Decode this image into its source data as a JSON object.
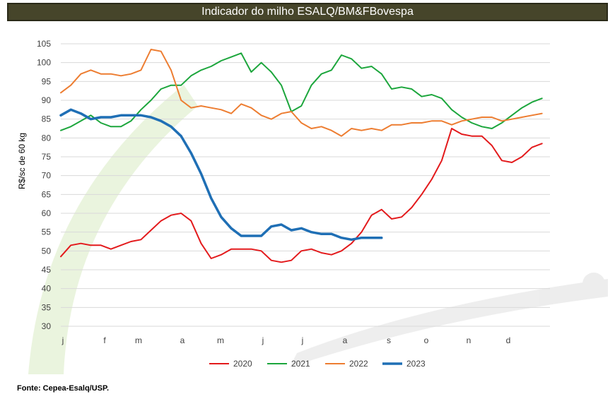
{
  "title": "Indicador do milho ESALQ/BM&FBovespa",
  "source": "Fonte: Cepea-Esalq/USP.",
  "chart_data": {
    "type": "line",
    "title": "Indicador do milho ESALQ/BM&FBovespa",
    "ylabel": "R$/sc de 60 kg",
    "xlabel": "",
    "ylim": [
      30,
      105
    ],
    "yticks": [
      30,
      35,
      40,
      45,
      50,
      55,
      60,
      65,
      70,
      75,
      80,
      85,
      90,
      95,
      100,
      105
    ],
    "xlim": [
      0,
      12.2
    ],
    "month_ticks": [
      "j",
      "f",
      "m",
      "a",
      "m",
      "j",
      "j",
      "a",
      "s",
      "o",
      "n",
      "d"
    ],
    "grid": true,
    "legend": "bottom",
    "series": [
      {
        "name": "2020",
        "color": "#e31a1c",
        "x": [
          0.0,
          0.25,
          0.5,
          0.75,
          1.0,
          1.25,
          1.5,
          1.75,
          2.0,
          2.25,
          2.5,
          2.75,
          3.0,
          3.25,
          3.5,
          3.75,
          4.0,
          4.25,
          4.5,
          4.75,
          5.0,
          5.25,
          5.5,
          5.75,
          6.0,
          6.25,
          6.5,
          6.75,
          7.0,
          7.25,
          7.5,
          7.75,
          8.0,
          8.25,
          8.5,
          8.75,
          9.0,
          9.25,
          9.5,
          9.75,
          10.0,
          10.25,
          10.5,
          10.75,
          11.0,
          11.25,
          11.5,
          11.75,
          12.0
        ],
        "y": [
          48.5,
          51.5,
          52.0,
          51.5,
          51.5,
          50.5,
          51.5,
          52.5,
          53.0,
          55.5,
          58.0,
          59.5,
          60.0,
          58.0,
          52.0,
          48.0,
          49.0,
          50.5,
          50.5,
          50.5,
          50.0,
          47.5,
          47.0,
          47.5,
          50.0,
          50.5,
          49.5,
          49.0,
          50.0,
          52.0,
          55.0,
          59.5,
          61.0,
          58.5,
          59.0,
          61.5,
          65.0,
          69.0,
          74.0,
          82.5,
          81.0,
          80.5,
          80.5,
          78.0,
          74.0,
          73.5,
          75.0,
          77.5,
          78.5
        ]
      },
      {
        "name": "2021",
        "color": "#1ca63c",
        "x": [
          0.0,
          0.25,
          0.5,
          0.75,
          1.0,
          1.25,
          1.5,
          1.75,
          2.0,
          2.25,
          2.5,
          2.75,
          3.0,
          3.25,
          3.5,
          3.75,
          4.0,
          4.25,
          4.5,
          4.75,
          5.0,
          5.25,
          5.5,
          5.75,
          6.0,
          6.25,
          6.5,
          6.75,
          7.0,
          7.25,
          7.5,
          7.75,
          8.0,
          8.25,
          8.5,
          8.75,
          9.0,
          9.25,
          9.5,
          9.75,
          10.0,
          10.25,
          10.5,
          10.75,
          11.0,
          11.25,
          11.5,
          11.75,
          12.0
        ],
        "y": [
          82.0,
          83.0,
          84.5,
          86.0,
          84.0,
          83.0,
          83.0,
          84.5,
          87.5,
          90.0,
          93.0,
          94.0,
          94.0,
          96.5,
          98.0,
          99.0,
          100.5,
          101.5,
          102.5,
          97.5,
          100.0,
          97.5,
          94.0,
          87.0,
          88.5,
          94.0,
          97.0,
          98.0,
          102.0,
          101.0,
          98.5,
          99.0,
          97.0,
          93.0,
          93.5,
          93.0,
          91.0,
          91.5,
          90.5,
          87.5,
          85.5,
          84.0,
          83.0,
          82.5,
          84.0,
          86.0,
          88.0,
          89.5,
          90.5
        ]
      },
      {
        "name": "2022",
        "color": "#ed7d31",
        "x": [
          0.0,
          0.25,
          0.5,
          0.75,
          1.0,
          1.25,
          1.5,
          1.75,
          2.0,
          2.25,
          2.5,
          2.75,
          3.0,
          3.25,
          3.5,
          3.75,
          4.0,
          4.25,
          4.5,
          4.75,
          5.0,
          5.25,
          5.5,
          5.75,
          6.0,
          6.25,
          6.5,
          6.75,
          7.0,
          7.25,
          7.5,
          7.75,
          8.0,
          8.25,
          8.5,
          8.75,
          9.0,
          9.25,
          9.5,
          9.75,
          10.0,
          10.25,
          10.5,
          10.75,
          11.0,
          11.25,
          11.5,
          11.75,
          12.0
        ],
        "y": [
          92.0,
          94.0,
          97.0,
          98.0,
          97.0,
          97.0,
          96.5,
          97.0,
          98.0,
          103.5,
          103.0,
          98.0,
          90.0,
          88.0,
          88.5,
          88.0,
          87.5,
          86.5,
          89.0,
          88.0,
          86.0,
          85.0,
          86.5,
          87.0,
          84.0,
          82.5,
          83.0,
          82.0,
          80.5,
          82.5,
          82.0,
          82.5,
          82.0,
          83.5,
          83.5,
          84.0,
          84.0,
          84.5,
          84.5,
          83.5,
          84.5,
          85.0,
          85.5,
          85.5,
          84.5,
          85.0,
          85.5,
          86.0,
          86.5
        ]
      },
      {
        "name": "2023",
        "color": "#1f6fb5",
        "x": [
          0.0,
          0.25,
          0.5,
          0.75,
          1.0,
          1.25,
          1.5,
          1.75,
          2.0,
          2.25,
          2.5,
          2.75,
          3.0,
          3.25,
          3.5,
          3.75,
          4.0,
          4.25,
          4.5,
          4.75,
          5.0,
          5.25,
          5.5,
          5.75,
          6.0,
          6.25,
          6.5,
          6.75,
          7.0,
          7.25,
          7.5,
          7.75,
          8.0
        ],
        "y": [
          86.0,
          87.5,
          86.5,
          85.0,
          85.5,
          85.5,
          86.0,
          86.0,
          86.0,
          85.5,
          84.5,
          83.0,
          80.5,
          76.0,
          70.5,
          64.0,
          59.0,
          56.0,
          54.0,
          54.0,
          54.0,
          56.5,
          57.0,
          55.5,
          56.0,
          55.0,
          54.5,
          54.5,
          53.5,
          53.0,
          53.5,
          53.5,
          53.5
        ]
      }
    ]
  }
}
